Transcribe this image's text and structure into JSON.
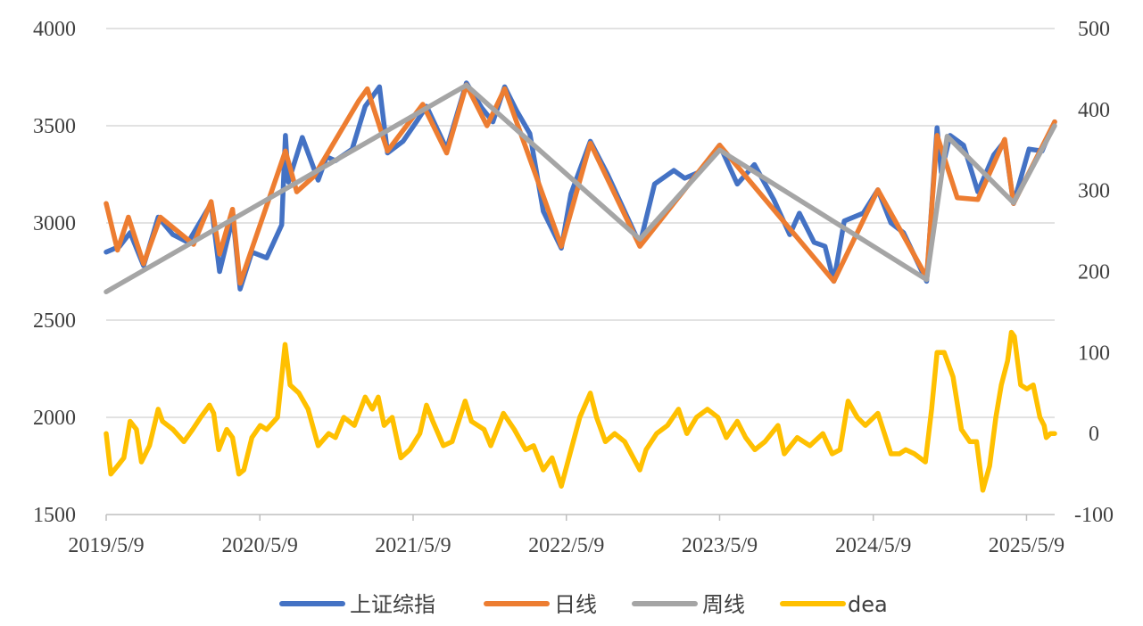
{
  "chart_data": {
    "type": "line",
    "title": "",
    "x_type": "date",
    "x_range": [
      "2019-05-09",
      "2025-07-15"
    ],
    "x_tick_labels": [
      "2019/5/9",
      "2020/5/9",
      "2021/5/9",
      "2022/5/9",
      "2023/5/9",
      "2024/5/9",
      "2025/5/9"
    ],
    "x_tick_dates": [
      "2019-05-09",
      "2020-05-09",
      "2021-05-09",
      "2022-05-09",
      "2023-05-09",
      "2024-05-09",
      "2025-05-09"
    ],
    "y_left": {
      "range": [
        1500,
        4000
      ],
      "ticks": [
        1500,
        2000,
        2500,
        3000,
        3500,
        4000
      ]
    },
    "y_right": {
      "range": [
        -100,
        500
      ],
      "ticks": [
        -100,
        0,
        100,
        200,
        300,
        400,
        500
      ]
    },
    "grid": true,
    "legend_position": "bottom",
    "series": [
      {
        "name": "上证综指",
        "axis": "left",
        "color": "#4472c4",
        "points": [
          [
            "2019-05-09",
            2850
          ],
          [
            "2019-06-10",
            2880
          ],
          [
            "2019-07-05",
            2950
          ],
          [
            "2019-08-06",
            2780
          ],
          [
            "2019-09-10",
            3030
          ],
          [
            "2019-10-15",
            2940
          ],
          [
            "2019-11-20",
            2900
          ],
          [
            "2019-12-31",
            3050
          ],
          [
            "2020-01-14",
            3100
          ],
          [
            "2020-02-03",
            2750
          ],
          [
            "2020-03-06",
            3030
          ],
          [
            "2020-03-23",
            2660
          ],
          [
            "2020-04-20",
            2850
          ],
          [
            "2020-05-25",
            2820
          ],
          [
            "2020-06-30",
            2990
          ],
          [
            "2020-07-09",
            3450
          ],
          [
            "2020-07-16",
            3210
          ],
          [
            "2020-08-18",
            3440
          ],
          [
            "2020-09-25",
            3220
          ],
          [
            "2020-10-15",
            3340
          ],
          [
            "2020-11-05",
            3320
          ],
          [
            "2020-12-15",
            3380
          ],
          [
            "2021-01-15",
            3600
          ],
          [
            "2021-02-18",
            3700
          ],
          [
            "2021-03-09",
            3360
          ],
          [
            "2021-04-15",
            3420
          ],
          [
            "2021-05-17",
            3520
          ],
          [
            "2021-06-10",
            3600
          ],
          [
            "2021-07-28",
            3380
          ],
          [
            "2021-09-13",
            3720
          ],
          [
            "2021-10-20",
            3590
          ],
          [
            "2021-11-15",
            3520
          ],
          [
            "2021-12-13",
            3700
          ],
          [
            "2022-01-10",
            3580
          ],
          [
            "2022-02-11",
            3460
          ],
          [
            "2022-03-15",
            3060
          ],
          [
            "2022-04-27",
            2870
          ],
          [
            "2022-05-20",
            3150
          ],
          [
            "2022-07-05",
            3420
          ],
          [
            "2022-08-15",
            3250
          ],
          [
            "2022-10-31",
            2890
          ],
          [
            "2022-12-05",
            3200
          ],
          [
            "2023-01-20",
            3270
          ],
          [
            "2023-02-15",
            3230
          ],
          [
            "2023-03-20",
            3260
          ],
          [
            "2023-05-09",
            3400
          ],
          [
            "2023-06-20",
            3200
          ],
          [
            "2023-07-31",
            3300
          ],
          [
            "2023-09-15",
            3120
          ],
          [
            "2023-10-23",
            2940
          ],
          [
            "2023-11-15",
            3050
          ],
          [
            "2023-12-20",
            2900
          ],
          [
            "2024-01-15",
            2880
          ],
          [
            "2024-02-05",
            2700
          ],
          [
            "2024-03-01",
            3010
          ],
          [
            "2024-04-15",
            3050
          ],
          [
            "2024-05-20",
            3170
          ],
          [
            "2024-06-20",
            3000
          ],
          [
            "2024-07-20",
            2950
          ],
          [
            "2024-09-13",
            2700
          ],
          [
            "2024-10-08",
            3490
          ],
          [
            "2024-10-18",
            3260
          ],
          [
            "2024-11-08",
            3450
          ],
          [
            "2024-12-10",
            3400
          ],
          [
            "2025-01-13",
            3160
          ],
          [
            "2025-02-20",
            3350
          ],
          [
            "2025-03-18",
            3420
          ],
          [
            "2025-04-08",
            3100
          ],
          [
            "2025-05-15",
            3380
          ],
          [
            "2025-06-15",
            3370
          ],
          [
            "2025-07-15",
            3520
          ]
        ]
      },
      {
        "name": "日线",
        "axis": "left",
        "color": "#ed7d31",
        "points": [
          [
            "2019-05-09",
            3100
          ],
          [
            "2019-06-05",
            2860
          ],
          [
            "2019-07-01",
            3030
          ],
          [
            "2019-08-06",
            2790
          ],
          [
            "2019-09-15",
            3030
          ],
          [
            "2019-12-03",
            2890
          ],
          [
            "2020-01-14",
            3110
          ],
          [
            "2020-02-03",
            2840
          ],
          [
            "2020-03-05",
            3070
          ],
          [
            "2020-03-23",
            2690
          ],
          [
            "2020-07-09",
            3370
          ],
          [
            "2020-08-05",
            3160
          ],
          [
            "2020-09-15",
            3240
          ],
          [
            "2020-12-31",
            3630
          ],
          [
            "2021-01-20",
            3690
          ],
          [
            "2021-03-09",
            3370
          ],
          [
            "2021-06-01",
            3610
          ],
          [
            "2021-07-28",
            3360
          ],
          [
            "2021-09-13",
            3710
          ],
          [
            "2021-11-01",
            3500
          ],
          [
            "2021-12-13",
            3690
          ],
          [
            "2022-04-27",
            2880
          ],
          [
            "2022-07-05",
            3410
          ],
          [
            "2022-10-31",
            2880
          ],
          [
            "2023-05-09",
            3400
          ],
          [
            "2024-02-05",
            2700
          ],
          [
            "2024-05-20",
            3170
          ],
          [
            "2024-09-13",
            2720
          ],
          [
            "2024-10-08",
            3450
          ],
          [
            "2024-11-25",
            3130
          ],
          [
            "2025-01-13",
            3120
          ],
          [
            "2025-03-18",
            3430
          ],
          [
            "2025-04-08",
            3100
          ],
          [
            "2025-07-15",
            3520
          ]
        ]
      },
      {
        "name": "周线",
        "axis": "right",
        "color": "#a5a5a5",
        "points": [
          [
            "2019-05-09",
            175
          ],
          [
            "2021-09-13",
            430
          ],
          [
            "2022-10-31",
            240
          ],
          [
            "2023-05-09",
            350
          ],
          [
            "2024-09-13",
            190
          ],
          [
            "2024-11-01",
            367
          ],
          [
            "2025-04-08",
            285
          ],
          [
            "2025-07-15",
            380
          ]
        ]
      },
      {
        "name": "dea",
        "axis": "right",
        "color": "#ffc000",
        "points": [
          [
            "2019-05-09",
            0
          ],
          [
            "2019-05-20",
            -50
          ],
          [
            "2019-06-05",
            -40
          ],
          [
            "2019-06-20",
            -30
          ],
          [
            "2019-07-05",
            15
          ],
          [
            "2019-07-20",
            5
          ],
          [
            "2019-08-01",
            -35
          ],
          [
            "2019-08-20",
            -15
          ],
          [
            "2019-09-10",
            30
          ],
          [
            "2019-09-20",
            15
          ],
          [
            "2019-10-15",
            5
          ],
          [
            "2019-11-10",
            -10
          ],
          [
            "2019-12-01",
            5
          ],
          [
            "2019-12-20",
            20
          ],
          [
            "2020-01-10",
            35
          ],
          [
            "2020-01-20",
            25
          ],
          [
            "2020-02-01",
            -20
          ],
          [
            "2020-02-20",
            5
          ],
          [
            "2020-03-05",
            -5
          ],
          [
            "2020-03-20",
            -50
          ],
          [
            "2020-04-01",
            -45
          ],
          [
            "2020-04-20",
            -5
          ],
          [
            "2020-05-10",
            10
          ],
          [
            "2020-05-25",
            5
          ],
          [
            "2020-06-20",
            20
          ],
          [
            "2020-07-08",
            110
          ],
          [
            "2020-07-20",
            60
          ],
          [
            "2020-08-10",
            50
          ],
          [
            "2020-09-01",
            30
          ],
          [
            "2020-09-25",
            -15
          ],
          [
            "2020-10-20",
            0
          ],
          [
            "2020-11-05",
            -5
          ],
          [
            "2020-11-25",
            20
          ],
          [
            "2020-12-20",
            10
          ],
          [
            "2021-01-15",
            45
          ],
          [
            "2021-02-01",
            30
          ],
          [
            "2021-02-15",
            45
          ],
          [
            "2021-03-01",
            10
          ],
          [
            "2021-03-20",
            20
          ],
          [
            "2021-04-10",
            -30
          ],
          [
            "2021-05-01",
            -20
          ],
          [
            "2021-05-25",
            0
          ],
          [
            "2021-06-10",
            35
          ],
          [
            "2021-06-25",
            15
          ],
          [
            "2021-07-20",
            -15
          ],
          [
            "2021-08-10",
            -10
          ],
          [
            "2021-09-10",
            40
          ],
          [
            "2021-09-25",
            15
          ],
          [
            "2021-10-25",
            5
          ],
          [
            "2021-11-10",
            -15
          ],
          [
            "2021-12-10",
            25
          ],
          [
            "2022-01-05",
            5
          ],
          [
            "2022-02-01",
            -20
          ],
          [
            "2022-02-20",
            -15
          ],
          [
            "2022-03-15",
            -45
          ],
          [
            "2022-04-05",
            -30
          ],
          [
            "2022-04-27",
            -65
          ],
          [
            "2022-05-15",
            -30
          ],
          [
            "2022-06-10",
            20
          ],
          [
            "2022-07-05",
            50
          ],
          [
            "2022-07-20",
            20
          ],
          [
            "2022-08-10",
            -10
          ],
          [
            "2022-09-01",
            0
          ],
          [
            "2022-09-25",
            -10
          ],
          [
            "2022-10-31",
            -45
          ],
          [
            "2022-11-15",
            -20
          ],
          [
            "2022-12-10",
            0
          ],
          [
            "2023-01-05",
            10
          ],
          [
            "2023-01-31",
            30
          ],
          [
            "2023-02-20",
            0
          ],
          [
            "2023-03-15",
            20
          ],
          [
            "2023-04-10",
            30
          ],
          [
            "2023-05-05",
            20
          ],
          [
            "2023-05-25",
            -5
          ],
          [
            "2023-06-20",
            15
          ],
          [
            "2023-07-10",
            -5
          ],
          [
            "2023-08-01",
            -20
          ],
          [
            "2023-08-25",
            -10
          ],
          [
            "2023-09-25",
            10
          ],
          [
            "2023-10-10",
            -25
          ],
          [
            "2023-11-10",
            -5
          ],
          [
            "2023-12-10",
            -15
          ],
          [
            "2024-01-10",
            0
          ],
          [
            "2024-02-01",
            -25
          ],
          [
            "2024-02-20",
            -20
          ],
          [
            "2024-03-10",
            40
          ],
          [
            "2024-04-01",
            20
          ],
          [
            "2024-04-20",
            10
          ],
          [
            "2024-05-20",
            25
          ],
          [
            "2024-06-20",
            -25
          ],
          [
            "2024-07-10",
            -25
          ],
          [
            "2024-07-25",
            -20
          ],
          [
            "2024-08-15",
            -25
          ],
          [
            "2024-09-10",
            -35
          ],
          [
            "2024-09-25",
            30
          ],
          [
            "2024-10-08",
            100
          ],
          [
            "2024-10-25",
            100
          ],
          [
            "2024-11-15",
            70
          ],
          [
            "2024-12-05",
            5
          ],
          [
            "2024-12-25",
            -10
          ],
          [
            "2025-01-10",
            -10
          ],
          [
            "2025-01-25",
            -70
          ],
          [
            "2025-02-10",
            -40
          ],
          [
            "2025-02-25",
            20
          ],
          [
            "2025-03-10",
            60
          ],
          [
            "2025-03-25",
            90
          ],
          [
            "2025-04-03",
            125
          ],
          [
            "2025-04-10",
            120
          ],
          [
            "2025-04-25",
            60
          ],
          [
            "2025-05-10",
            55
          ],
          [
            "2025-05-25",
            60
          ],
          [
            "2025-06-10",
            20
          ],
          [
            "2025-06-20",
            10
          ],
          [
            "2025-06-25",
            -5
          ],
          [
            "2025-07-05",
            0
          ],
          [
            "2025-07-15",
            0
          ]
        ]
      }
    ]
  }
}
